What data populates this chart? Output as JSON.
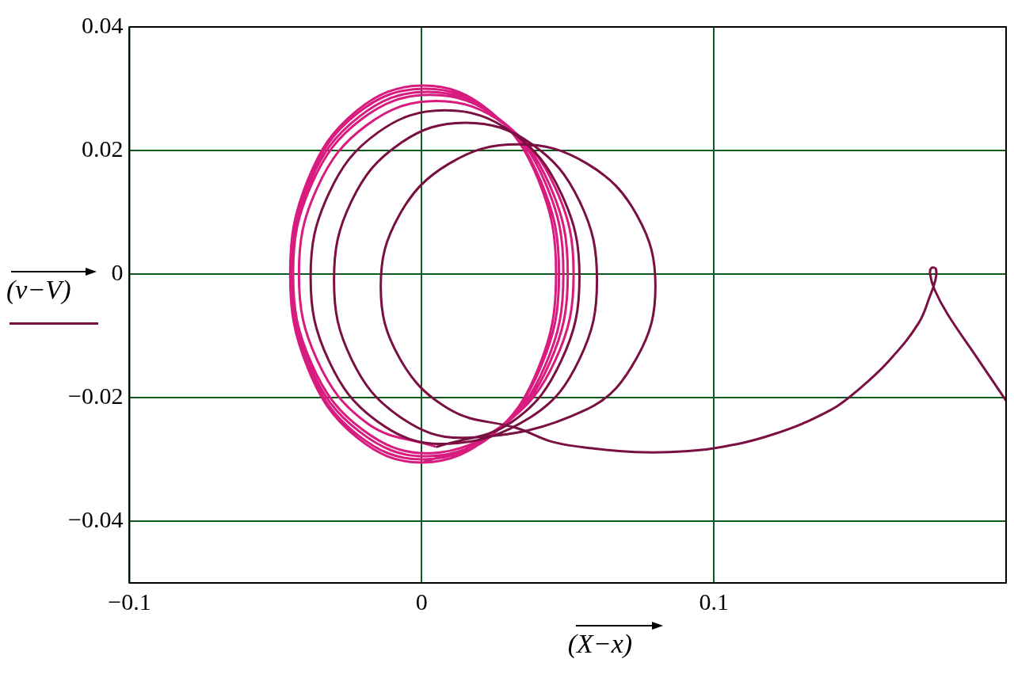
{
  "chart_data": {
    "type": "line",
    "xlabel": "(X−x)",
    "ylabel": "(v−V)",
    "xlim": [
      -0.1,
      0.2
    ],
    "ylim": [
      -0.05,
      0.04
    ],
    "xticks": [
      {
        "value": -0.1,
        "label": "−0.1"
      },
      0,
      0.1
    ],
    "yticks": [
      {
        "value": -0.04,
        "label": "−0.04"
      },
      {
        "value": -0.02,
        "label": "−0.02"
      },
      0,
      0.02,
      0.04
    ],
    "grid": true,
    "legend": false,
    "marker": "none",
    "line_style": "solid",
    "series": [
      {
        "color": "#7a1042",
        "x": [
          0.2,
          0.19,
          0.18,
          0.1755,
          0.174,
          0.1745,
          0.176,
          0.1758,
          0.174,
          0.17,
          0.16,
          0.15,
          0.14,
          0.12,
          0.1,
          0.085,
          0.073,
          0.06,
          0.045,
          0.033,
          0.0095,
          -0.0077,
          -0.014,
          -0.0077,
          0.0095,
          0.033,
          0.0565,
          0.0737,
          0.08,
          0.0737,
          0.0565,
          0.015,
          -0.0075,
          -0.024,
          -0.03,
          -0.024,
          -0.0075,
          0.015,
          0.0375,
          0.054,
          0.06,
          0.054,
          0.0375,
          0.008,
          -0.015,
          -0.0318,
          -0.038,
          -0.0318,
          -0.015,
          0.008,
          0.031,
          0.0478,
          0.054,
          0.0478,
          0.031,
          0.005
        ],
        "values": [
          -0.0205,
          -0.0135,
          -0.0065,
          -0.0025,
          0.0,
          0.001,
          0.0008,
          -0.001,
          -0.0035,
          -0.008,
          -0.014,
          -0.0185,
          -0.022,
          -0.026,
          -0.0282,
          -0.0288,
          -0.0288,
          -0.0283,
          -0.0272,
          -0.025,
          -0.0219,
          -0.0135,
          -0.002,
          0.0095,
          0.0179,
          0.021,
          0.0179,
          0.0095,
          -0.002,
          -0.0135,
          -0.0219,
          -0.0265,
          -0.0231,
          -0.0138,
          -0.001,
          0.0118,
          0.0211,
          0.0245,
          0.0211,
          0.0118,
          -0.001,
          -0.0138,
          -0.0231,
          -0.0275,
          -0.0239,
          -0.014,
          -0.0005,
          0.013,
          0.0229,
          0.0265,
          0.0229,
          0.013,
          -0.0005,
          -0.014,
          -0.0239,
          -0.028
        ]
      },
      {
        "color": "#d81b7e",
        "x": [
          0.005,
          -0.0185,
          -0.0357,
          -0.042,
          -0.0357,
          -0.0185,
          0.005,
          0.0285,
          0.0457,
          0.052,
          0.0457,
          0.0285,
          0.003,
          -0.0205,
          -0.0377,
          -0.044,
          -0.0377,
          -0.0205,
          0.003,
          0.0265,
          0.0437,
          0.05,
          0.0437,
          0.0265,
          0.002,
          -0.0213,
          -0.0383,
          -0.0445,
          -0.0383,
          -0.0213,
          0.002,
          0.0253,
          0.0423,
          0.0485,
          0.0423,
          0.0253,
          0.001,
          -0.022,
          -0.0388,
          -0.045,
          -0.0388,
          -0.022,
          0.001,
          0.024,
          0.0408,
          0.047,
          0.0408,
          0.024,
          0.0005,
          -0.0223,
          -0.0389,
          -0.045,
          -0.0389,
          -0.0223,
          0.0005,
          0.0233,
          0.0399,
          0.046,
          0.0399,
          0.0233,
          0.0005
        ],
        "values": [
          -0.028,
          -0.0242,
          -0.014,
          0.0,
          0.014,
          0.0242,
          0.028,
          0.0242,
          0.014,
          0.0,
          -0.014,
          -0.0242,
          -0.029,
          -0.0251,
          -0.0145,
          0.0,
          0.0145,
          0.0251,
          0.029,
          0.0251,
          0.0145,
          0.0,
          -0.0145,
          -0.0251,
          -0.0295,
          -0.0255,
          -0.0148,
          0.0,
          0.0148,
          0.0255,
          0.0295,
          0.0255,
          0.0148,
          0.0,
          -0.0148,
          -0.0255,
          -0.03,
          -0.026,
          -0.015,
          0.0,
          0.015,
          0.026,
          0.03,
          0.026,
          0.015,
          0.0,
          -0.015,
          -0.026,
          -0.0305,
          -0.0264,
          -0.0153,
          0.0,
          0.0153,
          0.0264,
          0.0305,
          0.0264,
          0.0153,
          0.0,
          -0.0153,
          -0.0264,
          -0.0305
        ]
      }
    ]
  }
}
